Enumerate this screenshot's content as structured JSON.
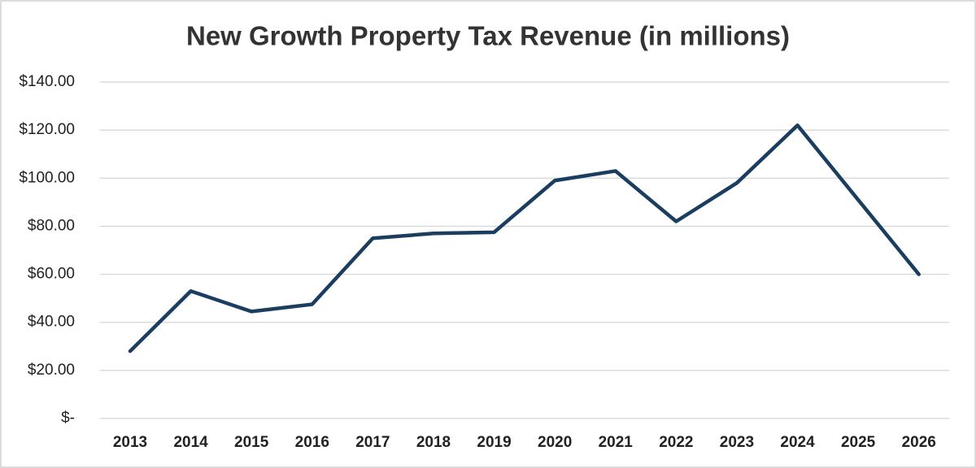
{
  "chart_data": {
    "type": "line",
    "title": "New Growth Property Tax Revenue (in millions)",
    "categories": [
      "2013",
      "2014",
      "2015",
      "2016",
      "2017",
      "2018",
      "2019",
      "2020",
      "2021",
      "2022",
      "2023",
      "2024",
      "2025",
      "2026"
    ],
    "values": [
      28,
      53,
      44.5,
      47.5,
      75,
      77,
      77.5,
      99,
      103,
      82,
      98,
      122,
      91,
      60
    ],
    "color": "#1b3d5f",
    "ylim": [
      0,
      140
    ],
    "yticks": [
      {
        "value": 0,
        "label": "$-"
      },
      {
        "value": 20,
        "label": "$20.00"
      },
      {
        "value": 40,
        "label": "$40.00"
      },
      {
        "value": 60,
        "label": "$60.00"
      },
      {
        "value": 80,
        "label": "$80.00"
      },
      {
        "value": 100,
        "label": "$100.00"
      },
      {
        "value": 120,
        "label": "$120.00"
      },
      {
        "value": 140,
        "label": "$140.00"
      }
    ],
    "grid": true
  }
}
